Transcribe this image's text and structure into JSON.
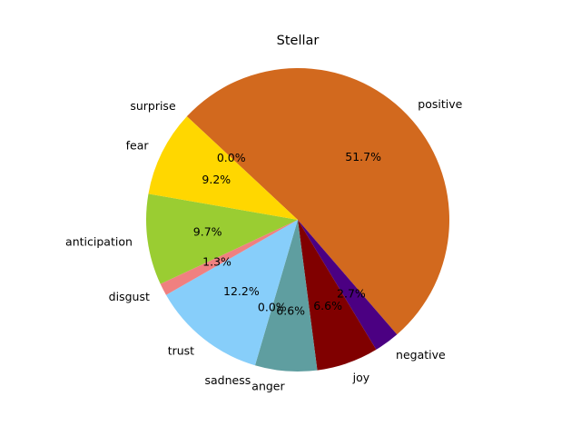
{
  "chart_data": {
    "type": "pie",
    "title": "Stellar",
    "labels": [
      "positive",
      "negative",
      "joy",
      "anger",
      "sadness",
      "trust",
      "disgust",
      "anticipation",
      "fear",
      "surprise"
    ],
    "values": [
      51.7,
      2.7,
      6.6,
      6.6,
      0.0,
      12.2,
      1.3,
      9.7,
      9.2,
      0.0
    ],
    "percent_labels": [
      "51.7%",
      "2.7%",
      "6.6%",
      "6.6%",
      "0.0%",
      "12.2%",
      "1.3%",
      "9.7%",
      "9.2%",
      "0.0%"
    ],
    "colors": [
      "#d2691e",
      "#4b0082",
      "#800000",
      "#5f9ea0",
      "#ba55d3",
      "#87cefa",
      "#f08080",
      "#9acd32",
      "#ffd700",
      "#ff8c00"
    ],
    "start_angle_deg": 137.0,
    "direction": "clockwise",
    "legend": "none"
  }
}
